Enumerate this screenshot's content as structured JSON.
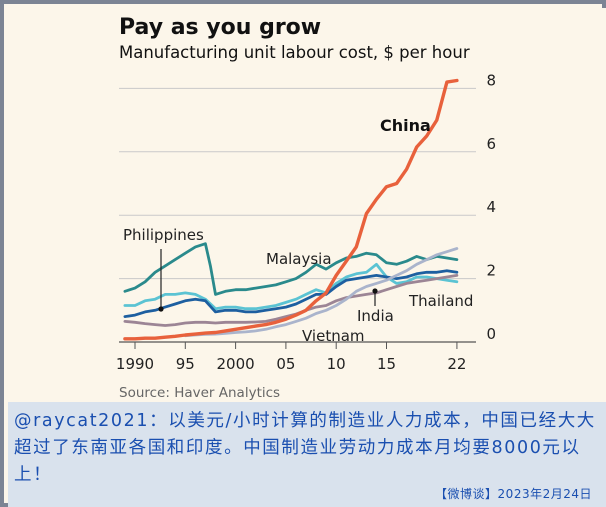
{
  "chart_data": {
    "type": "line",
    "title": "Pay as you grow",
    "subtitle": "Manufacturing unit labour cost, $ per hour",
    "source": "Source: Haver Analytics",
    "xlim": [
      1989,
      2023
    ],
    "ylim": [
      0,
      8.5
    ],
    "x_ticks": [
      "1990",
      "95",
      "2000",
      "05",
      "10",
      "15",
      "22"
    ],
    "y_ticks": [
      "0",
      "2",
      "4",
      "6",
      "8"
    ],
    "grid": true,
    "series": [
      {
        "name": "Philippines",
        "color": "#2a8a8c",
        "x": [
          1989,
          1990,
          1991,
          1992,
          1993,
          1994,
          1995,
          1996,
          1997,
          1997.5,
          1998,
          1999,
          2000,
          2001,
          2002,
          2003,
          2004,
          2005,
          2006,
          2007,
          2008,
          2009,
          2010,
          2011,
          2012,
          2013,
          2014,
          2015,
          2016,
          2017,
          2018,
          2019,
          2020,
          2021,
          2022
        ],
        "values": [
          1.6,
          1.7,
          1.9,
          2.2,
          2.4,
          2.6,
          2.8,
          3.0,
          3.1,
          2.4,
          1.5,
          1.6,
          1.65,
          1.65,
          1.7,
          1.75,
          1.8,
          1.9,
          2.0,
          2.2,
          2.45,
          2.3,
          2.5,
          2.65,
          2.7,
          2.8,
          2.75,
          2.5,
          2.45,
          2.55,
          2.7,
          2.6,
          2.7,
          2.65,
          2.6
        ]
      },
      {
        "name": "Malaysia",
        "color": "#5bc3d3",
        "x": [
          1989,
          1990,
          1991,
          1992,
          1993,
          1994,
          1995,
          1996,
          1997,
          1998,
          1999,
          2000,
          2001,
          2002,
          2003,
          2004,
          2005,
          2006,
          2007,
          2008,
          2009,
          2010,
          2011,
          2012,
          2013,
          2014,
          2015,
          2016,
          2017,
          2018,
          2019,
          2020,
          2021,
          2022
        ],
        "values": [
          1.15,
          1.15,
          1.3,
          1.35,
          1.5,
          1.5,
          1.55,
          1.5,
          1.35,
          1.05,
          1.1,
          1.1,
          1.05,
          1.05,
          1.1,
          1.15,
          1.25,
          1.35,
          1.5,
          1.65,
          1.55,
          1.85,
          2.05,
          2.15,
          2.2,
          2.45,
          2.05,
          1.85,
          1.9,
          2.05,
          2.05,
          2.0,
          1.95,
          1.9
        ]
      },
      {
        "name": "Thailand",
        "color": "#1d5fa0",
        "x": [
          1989,
          1990,
          1991,
          1992,
          1993,
          1994,
          1995,
          1996,
          1997,
          1998,
          1999,
          2000,
          2001,
          2002,
          2003,
          2004,
          2005,
          2006,
          2007,
          2008,
          2009,
          2010,
          2011,
          2012,
          2013,
          2014,
          2015,
          2016,
          2017,
          2018,
          2019,
          2020,
          2021,
          2022
        ],
        "values": [
          0.8,
          0.85,
          0.95,
          1.0,
          1.1,
          1.2,
          1.3,
          1.35,
          1.3,
          0.95,
          1.0,
          1.0,
          0.95,
          0.95,
          1.0,
          1.05,
          1.1,
          1.2,
          1.35,
          1.5,
          1.5,
          1.75,
          1.95,
          2.0,
          2.05,
          2.1,
          2.05,
          2.0,
          2.05,
          2.15,
          2.2,
          2.2,
          2.25,
          2.2
        ]
      },
      {
        "name": "India",
        "color": "#9c8595",
        "x": [
          1989,
          1990,
          1991,
          1992,
          1993,
          1994,
          1995,
          1996,
          1997,
          1998,
          1999,
          2000,
          2001,
          2002,
          2003,
          2004,
          2005,
          2006,
          2007,
          2008,
          2009,
          2010,
          2011,
          2012,
          2013,
          2014,
          2015,
          2016,
          2017,
          2018,
          2019,
          2020,
          2021,
          2022
        ],
        "values": [
          0.65,
          0.62,
          0.58,
          0.55,
          0.52,
          0.55,
          0.6,
          0.62,
          0.62,
          0.6,
          0.62,
          0.62,
          0.62,
          0.63,
          0.65,
          0.72,
          0.8,
          0.88,
          1.0,
          1.1,
          1.15,
          1.3,
          1.4,
          1.45,
          1.5,
          1.55,
          1.65,
          1.75,
          1.85,
          1.9,
          1.95,
          2.0,
          2.05,
          2.1
        ]
      },
      {
        "name": "Vietnam",
        "color": "#aab4cc",
        "x": [
          1995,
          1996,
          1997,
          1998,
          1999,
          2000,
          2001,
          2002,
          2003,
          2004,
          2005,
          2006,
          2007,
          2008,
          2009,
          2010,
          2011,
          2012,
          2013,
          2014,
          2015,
          2016,
          2017,
          2018,
          2019,
          2020,
          2021,
          2022
        ],
        "values": [
          0.2,
          0.22,
          0.24,
          0.25,
          0.27,
          0.3,
          0.32,
          0.35,
          0.4,
          0.48,
          0.55,
          0.65,
          0.75,
          0.9,
          1.0,
          1.15,
          1.35,
          1.6,
          1.75,
          1.85,
          1.95,
          2.1,
          2.25,
          2.45,
          2.6,
          2.75,
          2.85,
          2.95
        ]
      },
      {
        "name": "China",
        "color": "#e8613c",
        "x": [
          1989,
          1990,
          1991,
          1992,
          1993,
          1994,
          1995,
          1996,
          1997,
          1998,
          1999,
          2000,
          2001,
          2002,
          2003,
          2004,
          2005,
          2006,
          2007,
          2008,
          2009,
          2010,
          2011,
          2012,
          2013,
          2014,
          2015,
          2016,
          2017,
          2018,
          2019,
          2020,
          2021,
          2022
        ],
        "values": [
          0.1,
          0.1,
          0.12,
          0.12,
          0.15,
          0.18,
          0.22,
          0.25,
          0.28,
          0.3,
          0.35,
          0.4,
          0.45,
          0.5,
          0.55,
          0.62,
          0.72,
          0.85,
          1.0,
          1.3,
          1.55,
          2.1,
          2.55,
          3.0,
          4.05,
          4.5,
          4.9,
          5.0,
          5.45,
          6.15,
          6.5,
          7.0,
          8.2,
          8.25
        ]
      }
    ],
    "labels": {
      "china": "China",
      "philippines": "Philippines",
      "malaysia": "Malaysia",
      "thailand": "Thailand",
      "india": "India",
      "vietnam": "Vietnam"
    }
  },
  "caption": {
    "text": "@raycat2021：以美元/小时计算的制造业人力成本，中国已经大大超过了东南亚各国和印度。中国制造业劳动力成本月均要8000元以上！",
    "date": "【微博谈】2023年2月24日"
  }
}
